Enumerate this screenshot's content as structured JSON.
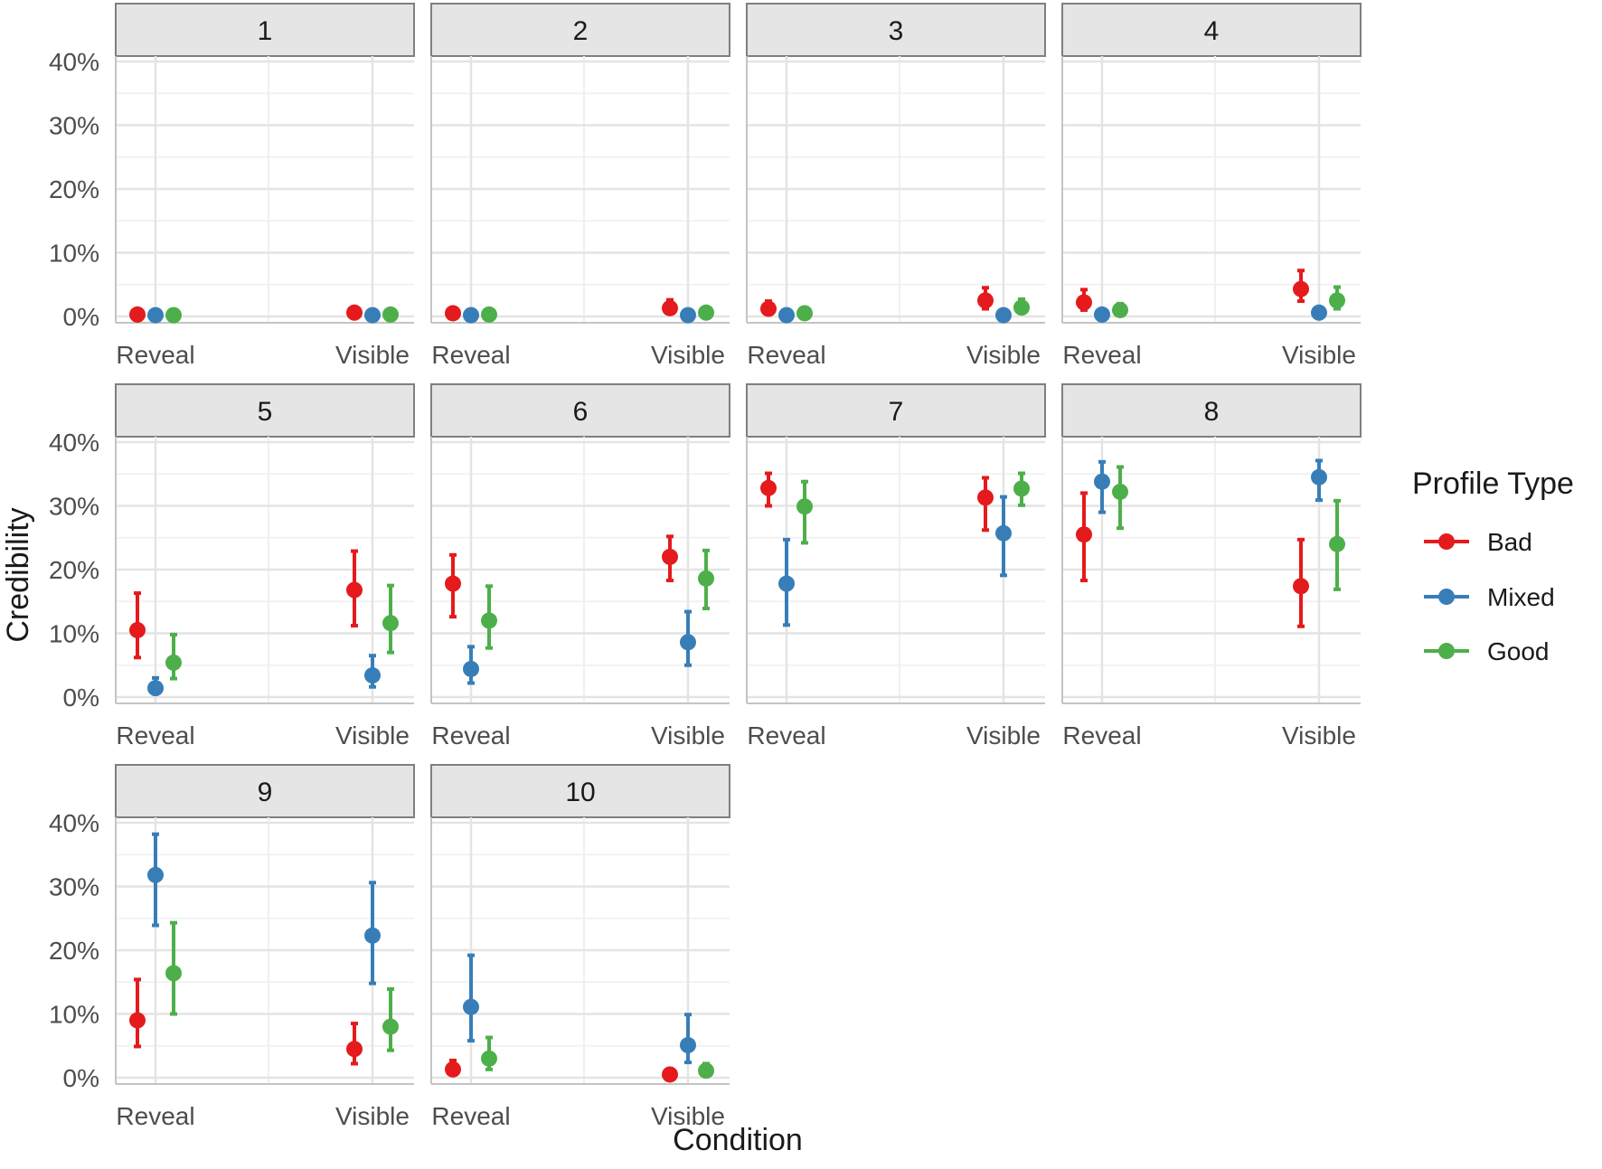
{
  "chart_data": {
    "type": "scatter",
    "subtype": "faceted point-range",
    "xlabel": "Condition",
    "ylabel": "Credibility",
    "ylim": [
      0,
      40
    ],
    "y_tick_labels": [
      "0%",
      "10%",
      "20%",
      "30%",
      "40%"
    ],
    "categories": [
      "Reveal",
      "Visible"
    ],
    "legend": {
      "title": "Profile Type",
      "placement": "right",
      "entries": [
        {
          "name": "Bad",
          "color": "#E41A1C"
        },
        {
          "name": "Mixed",
          "color": "#377EB8"
        },
        {
          "name": "Good",
          "color": "#4DAF4A"
        }
      ]
    },
    "grid": true,
    "facets": [
      {
        "label": "1",
        "series": [
          {
            "name": "Bad",
            "points": [
              {
                "x": "Reveal",
                "y": 0.3,
                "low": 0.1,
                "high": 0.6
              },
              {
                "x": "Visible",
                "y": 0.6,
                "low": 0.2,
                "high": 1.0
              }
            ]
          },
          {
            "name": "Mixed",
            "points": [
              {
                "x": "Reveal",
                "y": 0.2,
                "low": 0.0,
                "high": 0.4
              },
              {
                "x": "Visible",
                "y": 0.2,
                "low": 0.0,
                "high": 0.4
              }
            ]
          },
          {
            "name": "Good",
            "points": [
              {
                "x": "Reveal",
                "y": 0.2,
                "low": 0.0,
                "high": 0.4
              },
              {
                "x": "Visible",
                "y": 0.3,
                "low": 0.1,
                "high": 0.6
              }
            ]
          }
        ]
      },
      {
        "label": "2",
        "series": [
          {
            "name": "Bad",
            "points": [
              {
                "x": "Reveal",
                "y": 0.5,
                "low": 0.2,
                "high": 1.0
              },
              {
                "x": "Visible",
                "y": 1.3,
                "low": 0.6,
                "high": 2.6
              }
            ]
          },
          {
            "name": "Mixed",
            "points": [
              {
                "x": "Reveal",
                "y": 0.2,
                "low": 0.0,
                "high": 0.4
              },
              {
                "x": "Visible",
                "y": 0.2,
                "low": 0.0,
                "high": 0.4
              }
            ]
          },
          {
            "name": "Good",
            "points": [
              {
                "x": "Reveal",
                "y": 0.3,
                "low": 0.1,
                "high": 0.6
              },
              {
                "x": "Visible",
                "y": 0.6,
                "low": 0.2,
                "high": 1.1
              }
            ]
          }
        ]
      },
      {
        "label": "3",
        "series": [
          {
            "name": "Bad",
            "points": [
              {
                "x": "Reveal",
                "y": 1.2,
                "low": 0.5,
                "high": 2.4
              },
              {
                "x": "Visible",
                "y": 2.5,
                "low": 1.2,
                "high": 4.5
              }
            ]
          },
          {
            "name": "Mixed",
            "points": [
              {
                "x": "Reveal",
                "y": 0.2,
                "low": 0.0,
                "high": 0.4
              },
              {
                "x": "Visible",
                "y": 0.2,
                "low": 0.0,
                "high": 0.4
              }
            ]
          },
          {
            "name": "Good",
            "points": [
              {
                "x": "Reveal",
                "y": 0.5,
                "low": 0.2,
                "high": 1.0
              },
              {
                "x": "Visible",
                "y": 1.4,
                "low": 0.6,
                "high": 2.7
              }
            ]
          }
        ]
      },
      {
        "label": "4",
        "series": [
          {
            "name": "Bad",
            "points": [
              {
                "x": "Reveal",
                "y": 2.2,
                "low": 1.0,
                "high": 4.2
              },
              {
                "x": "Visible",
                "y": 4.3,
                "low": 2.4,
                "high": 7.2
              }
            ]
          },
          {
            "name": "Mixed",
            "points": [
              {
                "x": "Reveal",
                "y": 0.3,
                "low": 0.1,
                "high": 0.6
              },
              {
                "x": "Visible",
                "y": 0.6,
                "low": 0.2,
                "high": 1.0
              }
            ]
          },
          {
            "name": "Good",
            "points": [
              {
                "x": "Reveal",
                "y": 1.0,
                "low": 0.4,
                "high": 2.0
              },
              {
                "x": "Visible",
                "y": 2.5,
                "low": 1.2,
                "high": 4.6
              }
            ]
          }
        ]
      },
      {
        "label": "5",
        "series": [
          {
            "name": "Bad",
            "points": [
              {
                "x": "Reveal",
                "y": 10.5,
                "low": 6.2,
                "high": 16.3
              },
              {
                "x": "Visible",
                "y": 16.8,
                "low": 11.2,
                "high": 22.9
              }
            ]
          },
          {
            "name": "Mixed",
            "points": [
              {
                "x": "Reveal",
                "y": 1.4,
                "low": 0.6,
                "high": 3.0
              },
              {
                "x": "Visible",
                "y": 3.4,
                "low": 1.6,
                "high": 6.5
              }
            ]
          },
          {
            "name": "Good",
            "points": [
              {
                "x": "Reveal",
                "y": 5.4,
                "low": 2.9,
                "high": 9.8
              },
              {
                "x": "Visible",
                "y": 11.6,
                "low": 7.0,
                "high": 17.5
              }
            ]
          }
        ]
      },
      {
        "label": "6",
        "series": [
          {
            "name": "Bad",
            "points": [
              {
                "x": "Reveal",
                "y": 17.8,
                "low": 12.6,
                "high": 22.3
              },
              {
                "x": "Visible",
                "y": 22.0,
                "low": 18.3,
                "high": 25.2
              }
            ]
          },
          {
            "name": "Mixed",
            "points": [
              {
                "x": "Reveal",
                "y": 4.4,
                "low": 2.2,
                "high": 7.9
              },
              {
                "x": "Visible",
                "y": 8.6,
                "low": 5.0,
                "high": 13.4
              }
            ]
          },
          {
            "name": "Good",
            "points": [
              {
                "x": "Reveal",
                "y": 12.0,
                "low": 7.7,
                "high": 17.4
              },
              {
                "x": "Visible",
                "y": 18.6,
                "low": 13.9,
                "high": 23.0
              }
            ]
          }
        ]
      },
      {
        "label": "7",
        "series": [
          {
            "name": "Bad",
            "points": [
              {
                "x": "Reveal",
                "y": 32.8,
                "low": 30.0,
                "high": 35.1
              },
              {
                "x": "Visible",
                "y": 31.3,
                "low": 26.2,
                "high": 34.4
              }
            ]
          },
          {
            "name": "Mixed",
            "points": [
              {
                "x": "Reveal",
                "y": 17.8,
                "low": 11.3,
                "high": 24.7
              },
              {
                "x": "Visible",
                "y": 25.7,
                "low": 19.1,
                "high": 31.4
              }
            ]
          },
          {
            "name": "Good",
            "points": [
              {
                "x": "Reveal",
                "y": 29.9,
                "low": 24.2,
                "high": 33.8
              },
              {
                "x": "Visible",
                "y": 32.7,
                "low": 30.1,
                "high": 35.1
              }
            ]
          }
        ]
      },
      {
        "label": "8",
        "series": [
          {
            "name": "Bad",
            "points": [
              {
                "x": "Reveal",
                "y": 25.5,
                "low": 18.3,
                "high": 32.0
              },
              {
                "x": "Visible",
                "y": 17.4,
                "low": 11.1,
                "high": 24.7
              }
            ]
          },
          {
            "name": "Mixed",
            "points": [
              {
                "x": "Reveal",
                "y": 33.8,
                "low": 29.0,
                "high": 36.9
              },
              {
                "x": "Visible",
                "y": 34.5,
                "low": 30.9,
                "high": 37.1
              }
            ]
          },
          {
            "name": "Good",
            "points": [
              {
                "x": "Reveal",
                "y": 32.2,
                "low": 26.5,
                "high": 36.1
              },
              {
                "x": "Visible",
                "y": 24.0,
                "low": 16.9,
                "high": 30.8
              }
            ]
          }
        ]
      },
      {
        "label": "9",
        "series": [
          {
            "name": "Bad",
            "points": [
              {
                "x": "Reveal",
                "y": 9.0,
                "low": 4.9,
                "high": 15.4
              },
              {
                "x": "Visible",
                "y": 4.5,
                "low": 2.2,
                "high": 8.5
              }
            ]
          },
          {
            "name": "Mixed",
            "points": [
              {
                "x": "Reveal",
                "y": 31.8,
                "low": 23.9,
                "high": 38.2
              },
              {
                "x": "Visible",
                "y": 22.3,
                "low": 14.8,
                "high": 30.6
              }
            ]
          },
          {
            "name": "Good",
            "points": [
              {
                "x": "Reveal",
                "y": 16.4,
                "low": 10.0,
                "high": 24.3
              },
              {
                "x": "Visible",
                "y": 8.0,
                "low": 4.3,
                "high": 13.9
              }
            ]
          }
        ]
      },
      {
        "label": "10",
        "series": [
          {
            "name": "Bad",
            "points": [
              {
                "x": "Reveal",
                "y": 1.3,
                "low": 0.6,
                "high": 2.7
              },
              {
                "x": "Visible",
                "y": 0.5,
                "low": 0.2,
                "high": 1.0
              }
            ]
          },
          {
            "name": "Mixed",
            "points": [
              {
                "x": "Reveal",
                "y": 11.1,
                "low": 5.8,
                "high": 19.2
              },
              {
                "x": "Visible",
                "y": 5.1,
                "low": 2.4,
                "high": 9.9
              }
            ]
          },
          {
            "name": "Good",
            "points": [
              {
                "x": "Reveal",
                "y": 3.0,
                "low": 1.3,
                "high": 6.3
              },
              {
                "x": "Visible",
                "y": 1.1,
                "low": 0.4,
                "high": 2.2
              }
            ]
          }
        ]
      }
    ]
  }
}
